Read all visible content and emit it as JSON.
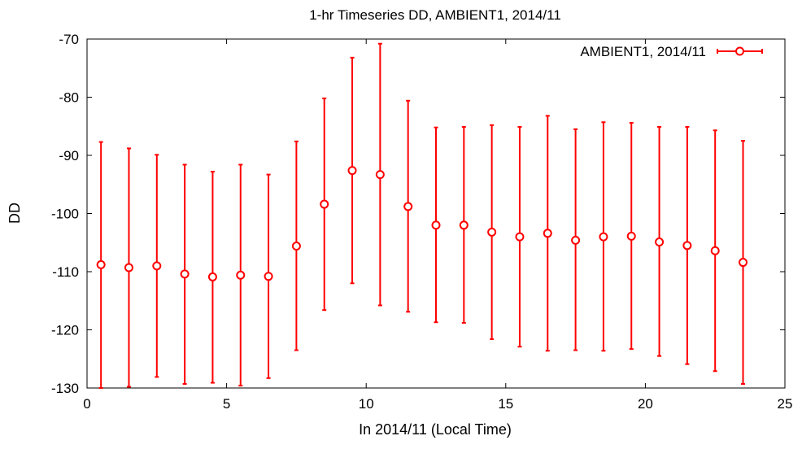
{
  "chart_data": {
    "type": "scatter",
    "title": "1-hr Timeseries DD, AMBIENT1, 2014/11",
    "xlabel": "In 2014/11 (Local Time)",
    "ylabel": "DD",
    "xlim": [
      0,
      25
    ],
    "ylim": [
      -130,
      -70
    ],
    "xticks": [
      0,
      5,
      10,
      15,
      20,
      25
    ],
    "yticks": [
      -130,
      -120,
      -110,
      -100,
      -90,
      -80,
      -70
    ],
    "grid": false,
    "legend_position": "top-right",
    "color": "#ff0000",
    "series": [
      {
        "name": "AMBIENT1, 2014/11",
        "x": [
          0.5,
          1.5,
          2.5,
          3.5,
          4.5,
          5.5,
          6.5,
          7.5,
          8.5,
          9.5,
          10.5,
          11.5,
          12.5,
          13.5,
          14.5,
          15.5,
          16.5,
          17.5,
          18.5,
          19.5,
          20.5,
          21.5,
          22.5,
          23.5
        ],
        "y": [
          -108.8,
          -109.3,
          -109.0,
          -110.4,
          -110.9,
          -110.6,
          -110.8,
          -105.6,
          -98.4,
          -92.6,
          -93.3,
          -98.8,
          -102.0,
          -102.0,
          -103.2,
          -104.0,
          -103.4,
          -104.6,
          -104.0,
          -103.9,
          -104.9,
          -105.5,
          -106.4,
          -108.4
        ],
        "y_low": [
          -130.0,
          -129.8,
          -128.1,
          -129.3,
          -129.1,
          -129.6,
          -128.3,
          -123.5,
          -116.6,
          -112.0,
          -115.8,
          -116.9,
          -118.7,
          -118.8,
          -121.6,
          -122.9,
          -123.6,
          -123.5,
          -123.6,
          -123.3,
          -124.5,
          -125.9,
          -127.1,
          -129.3
        ],
        "y_high": [
          -87.7,
          -88.8,
          -89.9,
          -91.6,
          -92.8,
          -91.6,
          -93.3,
          -87.6,
          -80.2,
          -73.2,
          -70.8,
          -80.6,
          -85.2,
          -85.1,
          -84.8,
          -85.1,
          -83.2,
          -85.5,
          -84.3,
          -84.4,
          -85.1,
          -85.1,
          -85.7,
          -87.5
        ]
      }
    ]
  }
}
